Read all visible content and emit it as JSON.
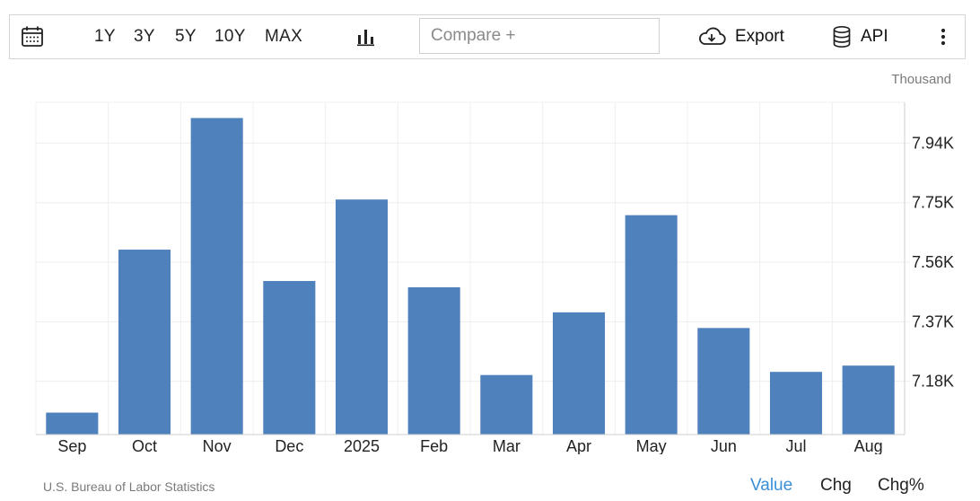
{
  "toolbar": {
    "ranges": [
      "1Y",
      "3Y",
      "5Y",
      "10Y",
      "MAX"
    ],
    "compare_placeholder": "Compare +",
    "export_label": "Export",
    "api_label": "API"
  },
  "chart_data": {
    "type": "bar",
    "unit": "Thousand",
    "categories": [
      "Sep",
      "Oct",
      "Nov",
      "Dec",
      "2025",
      "Feb",
      "Mar",
      "Apr",
      "May",
      "Jun",
      "Jul",
      "Aug"
    ],
    "values": [
      7.08,
      7.6,
      8.02,
      7.5,
      7.76,
      7.48,
      7.2,
      7.4,
      7.71,
      7.35,
      7.21,
      7.23
    ],
    "y_ticks": [
      7.18,
      7.37,
      7.56,
      7.75,
      7.94
    ],
    "y_tick_labels": [
      "7.18K",
      "7.37K",
      "7.56K",
      "7.75K",
      "7.94K"
    ],
    "ylim": [
      7.01,
      8.07
    ],
    "bar_color": "#4f81bd",
    "grid": true
  },
  "footer": {
    "source": "U.S. Bureau of Labor Statistics",
    "modes": [
      "Value",
      "Chg",
      "Chg%"
    ],
    "active_color": "#3a8fd8"
  }
}
